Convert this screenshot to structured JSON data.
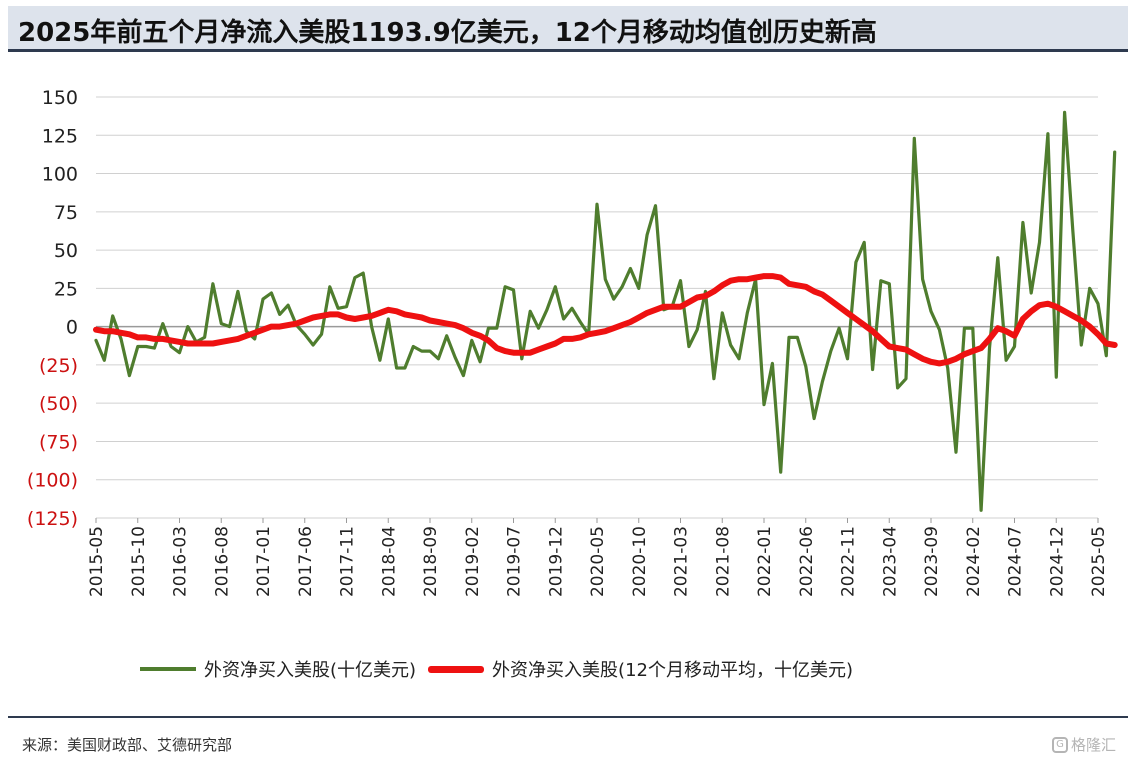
{
  "title": "2025年前五个月净流入美股1193.9亿美元，12个月移动均值创历史新高",
  "source": "来源：美国财政部、艾德研究部",
  "watermark": "格隆汇",
  "colors": {
    "monthly": "#4f7d2e",
    "moving_avg": "#ee1111",
    "negative_tick": "#cc1111",
    "grid": "#d0d0d0"
  },
  "chart_data": {
    "type": "line",
    "title": "2025年前五个月净流入美股1193.9亿美元，12个月移动均值创历史新高",
    "xlabel": "",
    "ylabel": "",
    "ylim": [
      -125,
      150
    ],
    "yticks": [
      150,
      125,
      100,
      75,
      50,
      25,
      0,
      -25,
      -50,
      -75,
      -100,
      -125
    ],
    "ytick_labels": [
      "150",
      "125",
      "100",
      "75",
      "50",
      "25",
      "0",
      "(25)",
      "(50)",
      "(75)",
      "(100)",
      "(125)"
    ],
    "x_start": "2015-05",
    "x_end": "2025-05",
    "x_tick_labels": [
      "2015-05",
      "2015-10",
      "2016-03",
      "2016-08",
      "2017-01",
      "2017-06",
      "2017-11",
      "2018-04",
      "2018-09",
      "2019-02",
      "2019-07",
      "2019-12",
      "2020-05",
      "2020-10",
      "2021-03",
      "2021-08",
      "2022-01",
      "2022-06",
      "2022-11",
      "2023-04",
      "2023-09",
      "2024-02",
      "2024-07",
      "2024-12",
      "2025-05"
    ],
    "grid": true,
    "legend_position": "bottom",
    "series": [
      {
        "name": "外资净买入美股(十亿美元)",
        "values": [
          -9,
          -22,
          7,
          -8,
          -32,
          -13,
          -13,
          -14,
          2,
          -13,
          -17,
          0,
          -10,
          -7,
          28,
          2,
          0,
          23,
          -3,
          -8,
          18,
          22,
          8,
          14,
          1,
          -5,
          -12,
          -5,
          26,
          12,
          13,
          32,
          35,
          0,
          -22,
          5,
          -27,
          -27,
          -13,
          -16,
          -16,
          -21,
          -6,
          -20,
          -32,
          -9,
          -23,
          -1,
          -1,
          26,
          24,
          -21,
          10,
          -1,
          11,
          26,
          5,
          12,
          3,
          -5,
          80,
          31,
          18,
          26,
          38,
          25,
          60,
          79,
          11,
          13,
          30,
          -13,
          -2,
          23,
          -34,
          9,
          -12,
          -21,
          9,
          31,
          -51,
          -24,
          -95,
          -7,
          -7,
          -26,
          -60,
          -36,
          -16,
          -1,
          -21,
          42,
          55,
          -28,
          30,
          28,
          -40,
          -34,
          123,
          31,
          10,
          -2,
          -27,
          -82,
          -1,
          -1,
          -120,
          -14,
          45,
          -22,
          -13,
          68,
          22,
          55,
          126,
          -33,
          140,
          62,
          -12,
          25,
          15,
          -19,
          114
        ],
        "color": "#4f7d2e"
      },
      {
        "name": "外资净买入美股(12个月移动平均，十亿美元)",
        "values": [
          -2,
          -3,
          -3,
          -4,
          -5,
          -7,
          -7,
          -8,
          -8,
          -9,
          -10,
          -11,
          -11,
          -11,
          -11,
          -10,
          -9,
          -8,
          -6,
          -4,
          -2,
          0,
          0,
          1,
          2,
          4,
          6,
          7,
          8,
          8,
          6,
          5,
          6,
          7,
          9,
          11,
          10,
          8,
          7,
          6,
          4,
          3,
          2,
          1,
          -1,
          -4,
          -6,
          -9,
          -14,
          -16,
          -17,
          -17,
          -17,
          -15,
          -13,
          -11,
          -8,
          -8,
          -7,
          -5,
          -4,
          -3,
          -1,
          1,
          3,
          6,
          9,
          11,
          13,
          13,
          13,
          16,
          19,
          20,
          23,
          27,
          30,
          31,
          31,
          32,
          33,
          33,
          32,
          28,
          27,
          26,
          23,
          21,
          17,
          13,
          9,
          5,
          1,
          -3,
          -8,
          -13,
          -14,
          -15,
          -18,
          -21,
          -23,
          -24,
          -23,
          -21,
          -18,
          -16,
          -14,
          -8,
          -1,
          -3,
          -6,
          5,
          10,
          14,
          15,
          13,
          10,
          7,
          4,
          0,
          -5,
          -11,
          -12
        ]
      }
    ]
  }
}
